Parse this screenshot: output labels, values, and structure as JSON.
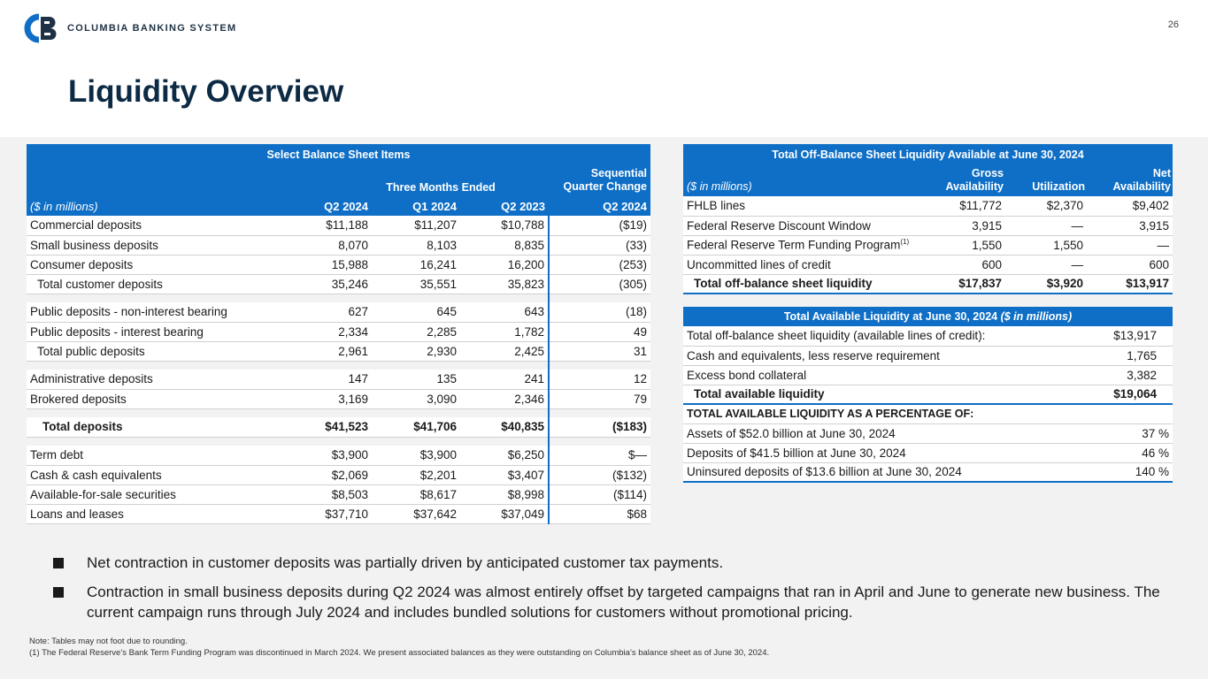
{
  "header": {
    "logo_text": "COLUMBIA BANKING SYSTEM",
    "page_number": "26",
    "title": "Liquidity Overview"
  },
  "balance_sheet": {
    "title": "Select Balance Sheet Items",
    "group_header": "Three Months Ended",
    "change_header_line1": "Sequential",
    "change_header_line2": "Quarter Change",
    "units": "($ in millions)",
    "columns": [
      "Q2 2024",
      "Q1 2024",
      "Q2 2023",
      "Q2 2024"
    ],
    "rows": [
      {
        "label": "Commercial deposits",
        "v": [
          "$11,188",
          "$11,207",
          "$10,788",
          "($19)"
        ]
      },
      {
        "label": "Small business deposits",
        "v": [
          "8,070",
          "8,103",
          "8,835",
          "(33)"
        ]
      },
      {
        "label": "Consumer deposits",
        "v": [
          "15,988",
          "16,241",
          "16,200",
          "(253)"
        ]
      },
      {
        "label": "Total customer deposits",
        "v": [
          "35,246",
          "35,551",
          "35,823",
          "(305)"
        ]
      },
      {
        "label": "Public deposits - non-interest bearing",
        "v": [
          "627",
          "645",
          "643",
          "(18)"
        ]
      },
      {
        "label": "Public deposits - interest bearing",
        "v": [
          "2,334",
          "2,285",
          "1,782",
          "49"
        ]
      },
      {
        "label": "Total public deposits",
        "v": [
          "2,961",
          "2,930",
          "2,425",
          "31"
        ]
      },
      {
        "label": "Administrative deposits",
        "v": [
          "147",
          "135",
          "241",
          "12"
        ]
      },
      {
        "label": "Brokered deposits",
        "v": [
          "3,169",
          "3,090",
          "2,346",
          "79"
        ]
      },
      {
        "label": "Total deposits",
        "v": [
          "$41,523",
          "$41,706",
          "$40,835",
          "($183)"
        ]
      },
      {
        "label": "Term debt",
        "v": [
          "$3,900",
          "$3,900",
          "$6,250",
          "$—"
        ]
      },
      {
        "label": "Cash & cash equivalents",
        "v": [
          "$2,069",
          "$2,201",
          "$3,407",
          "($132)"
        ]
      },
      {
        "label": "Available-for-sale securities",
        "v": [
          "$8,503",
          "$8,617",
          "$8,998",
          "($114)"
        ]
      },
      {
        "label": "Loans and leases",
        "v": [
          "$37,710",
          "$37,642",
          "$37,049",
          "$68"
        ]
      }
    ]
  },
  "off_balance": {
    "title": "Total Off-Balance Sheet Liquidity Available at June 30, 2024",
    "units": "($ in millions)",
    "col1_line1": "Gross",
    "col1_line2": "Availability",
    "col2": "Utilization",
    "col3_line1": "Net",
    "col3_line2": "Availability",
    "footnote_mark": "(1)",
    "rows": [
      {
        "label": "FHLB lines",
        "v": [
          "$11,772",
          "$2,370",
          "$9,402"
        ]
      },
      {
        "label": "Federal Reserve Discount Window",
        "v": [
          "3,915",
          "—",
          "3,915"
        ]
      },
      {
        "label": "Federal Reserve Term Funding Program",
        "v": [
          "1,550",
          "1,550",
          "—"
        ]
      },
      {
        "label": "Uncommitted lines of credit",
        "v": [
          "600",
          "—",
          "600"
        ]
      },
      {
        "label": "Total off-balance sheet liquidity",
        "v": [
          "$17,837",
          "$3,920",
          "$13,917"
        ]
      }
    ]
  },
  "available": {
    "title": "Total Available Liquidity at June 30, 2024",
    "title_units": "($ in millions)",
    "rows": [
      {
        "label": "Total off-balance sheet liquidity (available lines of credit):",
        "v": "$13,917"
      },
      {
        "label": "Cash and equivalents, less reserve requirement",
        "v": "1,765"
      },
      {
        "label": "Excess bond collateral",
        "v": "3,382"
      },
      {
        "label": "Total available liquidity",
        "v": "$19,064"
      }
    ],
    "pct_heading": "TOTAL AVAILABLE LIQUIDITY AS A PERCENTAGE OF:",
    "pct_rows": [
      {
        "label": "Assets of $52.0 billion at June 30, 2024",
        "v": "37 %"
      },
      {
        "label": "Deposits of $41.5 billion at June 30, 2024",
        "v": "46 %"
      },
      {
        "label": "Uninsured deposits of $13.6 billion at June 30, 2024",
        "v": "140 %"
      }
    ]
  },
  "bullets": [
    "Net contraction in customer deposits was partially driven by anticipated customer tax payments.",
    "Contraction in small business deposits during Q2 2024 was almost entirely offset by targeted campaigns that ran in April and June to generate new business. The current campaign runs through July 2024 and includes bundled solutions for customers without promotional pricing."
  ],
  "notes": {
    "line1": "Note: Tables may not foot due to rounding.",
    "line2": "(1)   The Federal Reserve’s Bank Term Funding Program was discontinued in March 2024. We present associated balances as they were outstanding on Columbia’s balance sheet as of June 30, 2024."
  },
  "colors": {
    "accent": "#0f6fc6",
    "title": "#0d2a44",
    "background": "#f2f2f2"
  }
}
